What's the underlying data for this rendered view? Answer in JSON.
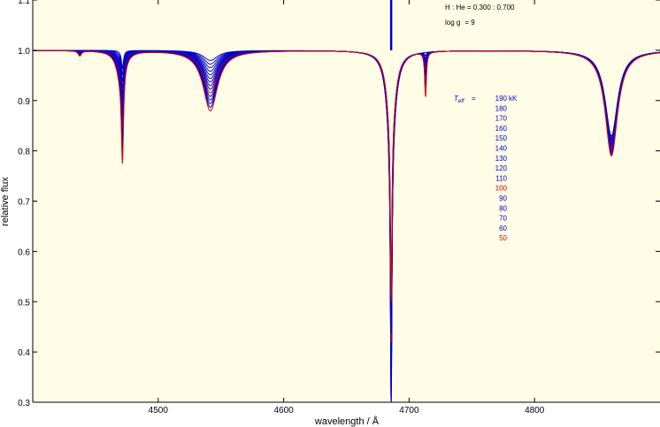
{
  "chart_data": {
    "type": "line",
    "title": "",
    "xlabel": "wavelength / Å",
    "ylabel": "relative flux",
    "xlim": [
      4400,
      4900
    ],
    "ylim": [
      0.3,
      1.1
    ],
    "xticks": [
      4500,
      4600,
      4700,
      4800
    ],
    "xtick_labels": [
      "4500",
      "4600",
      "4700",
      "4800"
    ],
    "yticks": [
      0.3,
      0.4,
      0.5,
      0.6,
      0.7,
      0.8,
      0.9,
      1.0,
      1.1
    ],
    "ytick_labels": [
      "0.3",
      "0.4",
      "0.5",
      "0.6",
      "0.7",
      "0.8",
      "0.9",
      "1.0",
      "1.1"
    ],
    "grid": false,
    "background_color": "#fffde6",
    "annotations": {
      "composition": "H : He = 0.300 : 0.700",
      "logg_label": "log g",
      "logg_value": "= 9",
      "teff_symbol": "T",
      "teff_subscript": "eff",
      "teff_eq": "=",
      "teff_unit": "kK"
    },
    "line_features": [
      {
        "center": 4437.5,
        "width": 1.5,
        "depth_hot": 0.0,
        "depth_cool": 0.01
      },
      {
        "center": 4471.5,
        "width": 1.0,
        "depth_hot": 0.035,
        "depth_cool": 0.18
      },
      {
        "center": 4470.0,
        "width": 4.0,
        "depth_hot": 0.0,
        "depth_cool": 0.05
      },
      {
        "center": 4541.6,
        "width": 7.0,
        "depth_hot": 0.02,
        "depth_cool": 0.12
      },
      {
        "center": 4685.7,
        "width": 0.7,
        "depth_hot": 0.55,
        "depth_cool": 0.35
      },
      {
        "center": 4685.7,
        "width": 4.0,
        "depth_hot": 0.18,
        "depth_cool": 0.15
      },
      {
        "center": 4713.1,
        "width": 0.8,
        "depth_hot": 0.0,
        "depth_cool": 0.09
      },
      {
        "center": 4861.3,
        "width": 6.0,
        "depth_hot": 0.17,
        "depth_cool": 0.21
      }
    ],
    "series": [
      {
        "name": "190",
        "teff": 190,
        "color": "#0000cc"
      },
      {
        "name": "180",
        "teff": 180,
        "color": "#0000cc"
      },
      {
        "name": "170",
        "teff": 170,
        "color": "#0000cc"
      },
      {
        "name": "160",
        "teff": 160,
        "color": "#0000cc"
      },
      {
        "name": "150",
        "teff": 150,
        "color": "#0000cc"
      },
      {
        "name": "140",
        "teff": 140,
        "color": "#0000cc"
      },
      {
        "name": "130",
        "teff": 130,
        "color": "#0000cc"
      },
      {
        "name": "120",
        "teff": 120,
        "color": "#0000cc"
      },
      {
        "name": "110",
        "teff": 110,
        "color": "#0000cc"
      },
      {
        "name": "100",
        "teff": 100,
        "color": "#dd0000"
      },
      {
        "name": "90",
        "teff": 90,
        "color": "#0000cc"
      },
      {
        "name": "80",
        "teff": 80,
        "color": "#0000cc"
      },
      {
        "name": "70",
        "teff": 70,
        "color": "#0000cc"
      },
      {
        "name": "60",
        "teff": 60,
        "color": "#0000cc"
      },
      {
        "name": "50",
        "teff": 50,
        "color": "#dd0000"
      }
    ],
    "emission_feature": {
      "center": 4685.7,
      "peak_flux": 1.1,
      "width": 0.2
    }
  }
}
